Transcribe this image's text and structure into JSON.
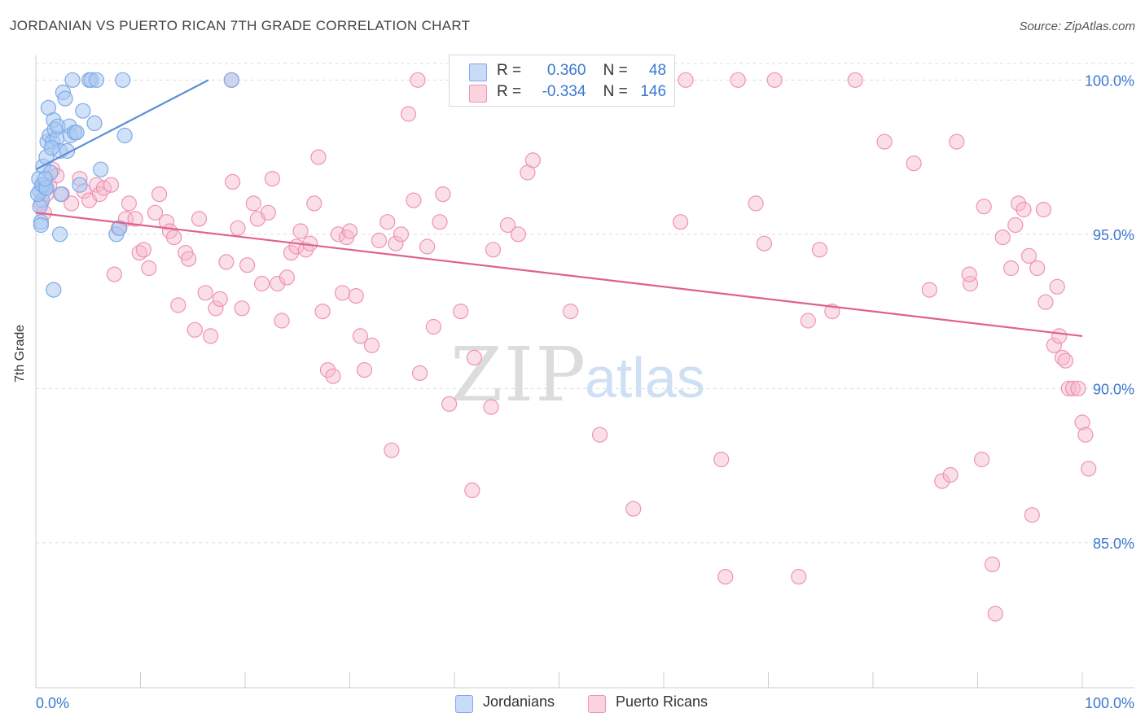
{
  "header": {
    "title": "JORDANIAN VS PUERTO RICAN 7TH GRADE CORRELATION CHART",
    "source": "Source: ZipAtlas.com"
  },
  "watermark": {
    "zip": "ZIP",
    "atlas": "atlas"
  },
  "legend": {
    "rows": [
      {
        "r_label": "R =",
        "r_value": "0.360",
        "n_label": "N =",
        "n_value": "48",
        "color": "#a9c8f2"
      },
      {
        "r_label": "R =",
        "r_value": "-0.334",
        "n_label": "N =",
        "n_value": "146",
        "color": "#f7b8cc"
      }
    ]
  },
  "bottom_legend": [
    {
      "label": "Jordanians",
      "color": "#a9c8f2"
    },
    {
      "label": "Puerto Ricans",
      "color": "#f7b8cc"
    }
  ],
  "chart_data": {
    "type": "scatter",
    "title": "JORDANIAN VS PUERTO RICAN 7TH GRADE CORRELATION CHART",
    "xlabel": "",
    "ylabel": "7th Grade",
    "xlim": [
      0,
      100
    ],
    "ylim": [
      80.3,
      100.8
    ],
    "x_tick_labels": [
      "0.0%",
      "100.0%"
    ],
    "y_ticks": [
      {
        "value": 85,
        "label": "85.0%"
      },
      {
        "value": 90,
        "label": "90.0%"
      },
      {
        "value": 95,
        "label": "95.0%"
      },
      {
        "value": 100,
        "label": "100.0%"
      }
    ],
    "grid": true,
    "series": [
      {
        "name": "Jordanians",
        "color": "#5a8fd8",
        "fill": "#a9c8f2",
        "trend": {
          "x": [
            0,
            16.5
          ],
          "y": [
            97.1,
            100.0
          ]
        },
        "points": [
          [
            0.3,
            96.8
          ],
          [
            0.4,
            96.4
          ],
          [
            0.5,
            95.4
          ],
          [
            0.6,
            96.1
          ],
          [
            0.7,
            97.2
          ],
          [
            0.8,
            96.6
          ],
          [
            0.9,
            96.5
          ],
          [
            1.0,
            97.5
          ],
          [
            1.1,
            98.0
          ],
          [
            1.2,
            99.1
          ],
          [
            1.3,
            98.2
          ],
          [
            1.4,
            97.0
          ],
          [
            1.6,
            98.0
          ],
          [
            1.7,
            98.7
          ],
          [
            1.8,
            98.4
          ],
          [
            2.0,
            98.1
          ],
          [
            2.1,
            98.5
          ],
          [
            2.3,
            97.7
          ],
          [
            2.4,
            96.3
          ],
          [
            2.6,
            99.6
          ],
          [
            2.8,
            99.4
          ],
          [
            3.0,
            97.7
          ],
          [
            3.2,
            98.5
          ],
          [
            3.3,
            98.2
          ],
          [
            3.5,
            100.0
          ],
          [
            3.7,
            98.3
          ],
          [
            3.9,
            98.3
          ],
          [
            4.2,
            96.6
          ],
          [
            4.5,
            99.0
          ],
          [
            5.1,
            100.0
          ],
          [
            5.3,
            100.0
          ],
          [
            5.8,
            100.0
          ],
          [
            5.6,
            98.6
          ],
          [
            6.2,
            97.1
          ],
          [
            7.7,
            95.0
          ],
          [
            8.0,
            95.2
          ],
          [
            8.3,
            100.0
          ],
          [
            8.5,
            98.2
          ],
          [
            2.3,
            95.0
          ],
          [
            1.7,
            93.2
          ],
          [
            0.4,
            95.9
          ],
          [
            0.2,
            96.3
          ],
          [
            0.6,
            96.6
          ],
          [
            1.0,
            96.5
          ],
          [
            18.7,
            100.0
          ],
          [
            0.5,
            95.3
          ],
          [
            0.9,
            96.8
          ],
          [
            1.5,
            97.8
          ]
        ]
      },
      {
        "name": "Puerto Ricans",
        "color": "#e0608e",
        "fill": "#f7b8cc",
        "trend": {
          "x": [
            0,
            100
          ],
          "y": [
            95.7,
            91.7
          ]
        },
        "points": [
          [
            0.5,
            96.0
          ],
          [
            0.8,
            95.7
          ],
          [
            1.0,
            96.3
          ],
          [
            1.3,
            96.6
          ],
          [
            1.6,
            97.1
          ],
          [
            2.0,
            96.9
          ],
          [
            2.5,
            96.3
          ],
          [
            3.4,
            96.0
          ],
          [
            4.2,
            96.8
          ],
          [
            4.6,
            96.4
          ],
          [
            5.1,
            96.1
          ],
          [
            5.8,
            96.6
          ],
          [
            6.1,
            96.3
          ],
          [
            6.5,
            96.5
          ],
          [
            7.2,
            96.6
          ],
          [
            7.5,
            93.7
          ],
          [
            7.9,
            95.2
          ],
          [
            8.6,
            95.5
          ],
          [
            8.9,
            96.0
          ],
          [
            9.5,
            95.5
          ],
          [
            9.9,
            94.4
          ],
          [
            10.3,
            94.5
          ],
          [
            10.8,
            93.9
          ],
          [
            11.4,
            95.7
          ],
          [
            11.8,
            96.3
          ],
          [
            12.5,
            95.4
          ],
          [
            12.8,
            95.1
          ],
          [
            13.2,
            94.9
          ],
          [
            13.6,
            92.7
          ],
          [
            14.3,
            94.4
          ],
          [
            14.6,
            94.2
          ],
          [
            15.2,
            91.9
          ],
          [
            15.6,
            95.5
          ],
          [
            16.2,
            93.1
          ],
          [
            16.7,
            91.7
          ],
          [
            17.2,
            92.6
          ],
          [
            17.6,
            92.9
          ],
          [
            18.2,
            94.1
          ],
          [
            18.8,
            96.7
          ],
          [
            19.3,
            95.2
          ],
          [
            19.7,
            92.6
          ],
          [
            20.2,
            94.0
          ],
          [
            20.8,
            96.0
          ],
          [
            21.2,
            95.5
          ],
          [
            21.6,
            93.4
          ],
          [
            22.2,
            95.7
          ],
          [
            22.6,
            96.8
          ],
          [
            23.1,
            93.4
          ],
          [
            23.5,
            92.2
          ],
          [
            24.0,
            93.6
          ],
          [
            24.4,
            94.4
          ],
          [
            24.9,
            94.6
          ],
          [
            25.3,
            95.1
          ],
          [
            25.8,
            94.5
          ],
          [
            26.2,
            94.7
          ],
          [
            26.6,
            96.0
          ],
          [
            27.0,
            97.5
          ],
          [
            27.4,
            92.5
          ],
          [
            27.9,
            90.6
          ],
          [
            28.4,
            90.4
          ],
          [
            28.9,
            95.0
          ],
          [
            29.3,
            93.1
          ],
          [
            29.7,
            94.9
          ],
          [
            30.0,
            95.1
          ],
          [
            30.6,
            93.0
          ],
          [
            31.0,
            91.7
          ],
          [
            31.4,
            90.6
          ],
          [
            32.1,
            91.4
          ],
          [
            32.8,
            94.8
          ],
          [
            33.6,
            95.4
          ],
          [
            34.0,
            88.0
          ],
          [
            34.4,
            94.7
          ],
          [
            34.9,
            95.0
          ],
          [
            35.6,
            98.9
          ],
          [
            36.1,
            96.1
          ],
          [
            36.7,
            90.5
          ],
          [
            37.4,
            94.6
          ],
          [
            38.0,
            92.0
          ],
          [
            38.6,
            95.4
          ],
          [
            38.9,
            96.3
          ],
          [
            39.5,
            89.5
          ],
          [
            40.6,
            92.5
          ],
          [
            41.7,
            86.7
          ],
          [
            41.9,
            91.0
          ],
          [
            43.5,
            89.4
          ],
          [
            43.7,
            94.5
          ],
          [
            45.1,
            95.3
          ],
          [
            46.1,
            95.0
          ],
          [
            47.0,
            97.0
          ],
          [
            47.5,
            97.4
          ],
          [
            48.3,
            100.0
          ],
          [
            51.1,
            92.5
          ],
          [
            53.9,
            88.5
          ],
          [
            57.1,
            86.1
          ],
          [
            59.1,
            100.0
          ],
          [
            61.6,
            95.4
          ],
          [
            62.1,
            100.0
          ],
          [
            65.5,
            87.7
          ],
          [
            65.9,
            83.9
          ],
          [
            67.1,
            100.0
          ],
          [
            68.8,
            96.0
          ],
          [
            69.6,
            94.7
          ],
          [
            70.6,
            100.0
          ],
          [
            72.9,
            83.9
          ],
          [
            73.8,
            92.2
          ],
          [
            74.9,
            94.5
          ],
          [
            76.1,
            92.5
          ],
          [
            78.3,
            100.0
          ],
          [
            81.1,
            98.0
          ],
          [
            83.9,
            97.3
          ],
          [
            85.4,
            93.2
          ],
          [
            86.6,
            87.0
          ],
          [
            87.4,
            87.2
          ],
          [
            88.0,
            98.0
          ],
          [
            89.3,
            93.4
          ],
          [
            89.2,
            93.7
          ],
          [
            90.4,
            87.7
          ],
          [
            90.6,
            95.9
          ],
          [
            91.4,
            84.3
          ],
          [
            91.7,
            82.7
          ],
          [
            92.4,
            94.9
          ],
          [
            93.2,
            93.9
          ],
          [
            93.6,
            95.3
          ],
          [
            93.9,
            96.0
          ],
          [
            94.4,
            95.8
          ],
          [
            94.9,
            94.3
          ],
          [
            95.2,
            85.9
          ],
          [
            95.7,
            93.9
          ],
          [
            96.3,
            95.8
          ],
          [
            96.5,
            92.8
          ],
          [
            97.6,
            93.3
          ],
          [
            97.3,
            91.4
          ],
          [
            97.8,
            91.7
          ],
          [
            98.1,
            91.0
          ],
          [
            98.4,
            90.9
          ],
          [
            98.7,
            90.0
          ],
          [
            99.1,
            90.0
          ],
          [
            99.6,
            90.0
          ],
          [
            100.0,
            88.9
          ],
          [
            100.3,
            88.5
          ],
          [
            100.6,
            87.4
          ],
          [
            18.7,
            100.0
          ],
          [
            36.5,
            100.0
          ],
          [
            56.5,
            100.0
          ]
        ]
      }
    ]
  }
}
